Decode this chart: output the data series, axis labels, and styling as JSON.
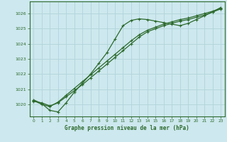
{
  "title": "Graphe pression niveau de la mer (hPa)",
  "bg_color": "#cde8ee",
  "grid_color": "#b0d4da",
  "line_color": "#2d6a2d",
  "xlim": [
    -0.5,
    23.5
  ],
  "ylim": [
    1019.2,
    1026.8
  ],
  "yticks": [
    1020,
    1021,
    1022,
    1023,
    1024,
    1025,
    1026
  ],
  "xticks": [
    0,
    1,
    2,
    3,
    4,
    5,
    6,
    7,
    8,
    9,
    10,
    11,
    12,
    13,
    14,
    15,
    16,
    17,
    18,
    19,
    20,
    21,
    22,
    23
  ],
  "series1_x": [
    0,
    1,
    2,
    3,
    4,
    5,
    6,
    7,
    8,
    9,
    10,
    11,
    12,
    13,
    14,
    15,
    16,
    17,
    18,
    19,
    20,
    21,
    22,
    23
  ],
  "series1_y": [
    1020.3,
    1020.05,
    1019.6,
    1019.5,
    1020.1,
    1020.8,
    1021.4,
    1022.0,
    1022.7,
    1023.4,
    1024.3,
    1025.2,
    1025.55,
    1025.65,
    1025.6,
    1025.5,
    1025.4,
    1025.3,
    1025.2,
    1025.35,
    1025.6,
    1025.85,
    1026.1,
    1026.4
  ],
  "series2_x": [
    0,
    1,
    2,
    3,
    4,
    5,
    6,
    7,
    8,
    9,
    10,
    11,
    12,
    13,
    14,
    15,
    16,
    17,
    18,
    19,
    20,
    21,
    22,
    23
  ],
  "series2_y": [
    1020.2,
    1020.1,
    1019.9,
    1020.1,
    1020.5,
    1020.9,
    1021.3,
    1021.75,
    1022.2,
    1022.65,
    1023.1,
    1023.55,
    1024.0,
    1024.45,
    1024.8,
    1025.0,
    1025.2,
    1025.35,
    1025.5,
    1025.6,
    1025.75,
    1025.9,
    1026.1,
    1026.3
  ],
  "series3_x": [
    0,
    1,
    2,
    3,
    4,
    5,
    6,
    7,
    8,
    9,
    10,
    11,
    12,
    13,
    14,
    15,
    16,
    17,
    18,
    19,
    20,
    21,
    22,
    23
  ],
  "series3_y": [
    1020.25,
    1020.0,
    1019.85,
    1020.15,
    1020.6,
    1021.05,
    1021.5,
    1021.95,
    1022.4,
    1022.85,
    1023.3,
    1023.75,
    1024.2,
    1024.6,
    1024.9,
    1025.1,
    1025.3,
    1025.45,
    1025.6,
    1025.7,
    1025.85,
    1026.0,
    1026.15,
    1026.35
  ]
}
